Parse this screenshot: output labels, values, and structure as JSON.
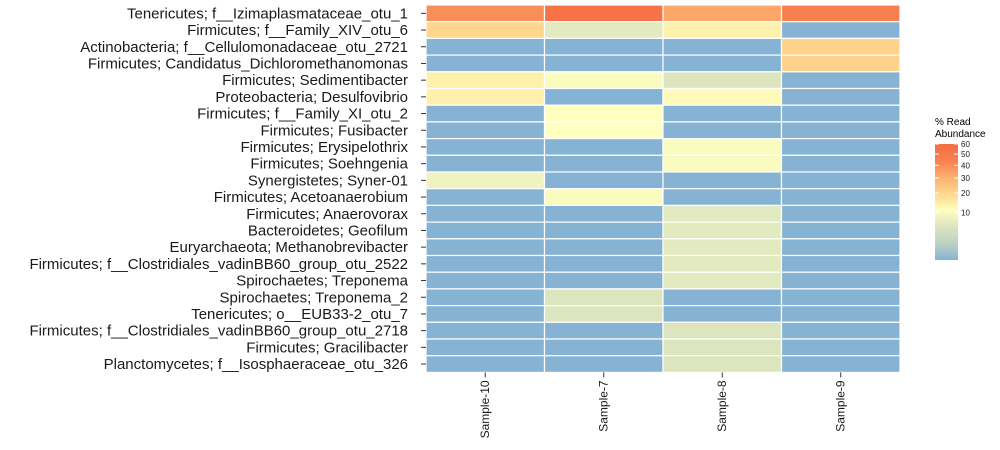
{
  "chart_data": {
    "type": "heatmap",
    "title": "",
    "xlabel": "",
    "ylabel": "",
    "x": [
      "Sample-10",
      "Sample-7",
      "Sample-8",
      "Sample-9"
    ],
    "y": [
      "Tenericutes; f__Izimaplasmataceae_otu_1",
      "Firmicutes; f__Family_XIV_otu_6",
      "Actinobacteria; f__Cellulomonadaceae_otu_2721",
      "Firmicutes; Candidatus_Dichloromethanomonas",
      "Firmicutes; Sedimentibacter",
      "Proteobacteria; Desulfovibrio",
      "Firmicutes; f__Family_XI_otu_2",
      "Firmicutes; Fusibacter",
      "Firmicutes; Erysipelothrix",
      "Firmicutes; Soehngenia",
      "Synergistetes; Syner-01",
      "Firmicutes; Acetoanaerobium",
      "Firmicutes; Anaerovorax",
      "Bacteroidetes; Geofilum",
      "Euryarchaeota; Methanobrevibacter",
      "Firmicutes; f__Clostridiales_vadinBB60_group_otu_2522",
      "Spirochaetes; Treponema",
      "Spirochaetes; Treponema_2",
      "Tenericutes; o__EUB33-2_otu_7",
      "Firmicutes; f__Clostridiales_vadinBB60_group_otu_2718",
      "Firmicutes; Gracilibacter",
      "Planctomycetes; f__Isosphaeraceae_otu_326"
    ],
    "values": [
      [
        40,
        55,
        33,
        45
      ],
      [
        20,
        6,
        14,
        0
      ],
      [
        0,
        0,
        0,
        21
      ],
      [
        0,
        0,
        0,
        21
      ],
      [
        14,
        10,
        5,
        0
      ],
      [
        14,
        0,
        12,
        0
      ],
      [
        0,
        11,
        0,
        0
      ],
      [
        0,
        11,
        0,
        0
      ],
      [
        0,
        0,
        10,
        0
      ],
      [
        0,
        0,
        10,
        0
      ],
      [
        8,
        0,
        0,
        0
      ],
      [
        0,
        10,
        0,
        0
      ],
      [
        0,
        0,
        6,
        0
      ],
      [
        0,
        0,
        6,
        0
      ],
      [
        0,
        0,
        6,
        0
      ],
      [
        0,
        0,
        6,
        0
      ],
      [
        0,
        0,
        6,
        0
      ],
      [
        0,
        5,
        0,
        0
      ],
      [
        0,
        5,
        0,
        0
      ],
      [
        0,
        0,
        5,
        0
      ],
      [
        0,
        0,
        5,
        0
      ],
      [
        0,
        0,
        5,
        0
      ]
    ],
    "legend": {
      "title_line1": "% Read",
      "title_line2": "Abundance",
      "ticks": [
        60,
        50,
        40,
        30,
        20,
        10
      ],
      "range": [
        0,
        60
      ],
      "scale": "sqrt",
      "placement": "right",
      "colors": [
        "#86B3D3",
        "#BCD2C6",
        "#DCE4BF",
        "#FFFFBF",
        "#FED88E",
        "#FDB06F",
        "#F88050",
        "#F46D43"
      ]
    },
    "grid": false
  }
}
